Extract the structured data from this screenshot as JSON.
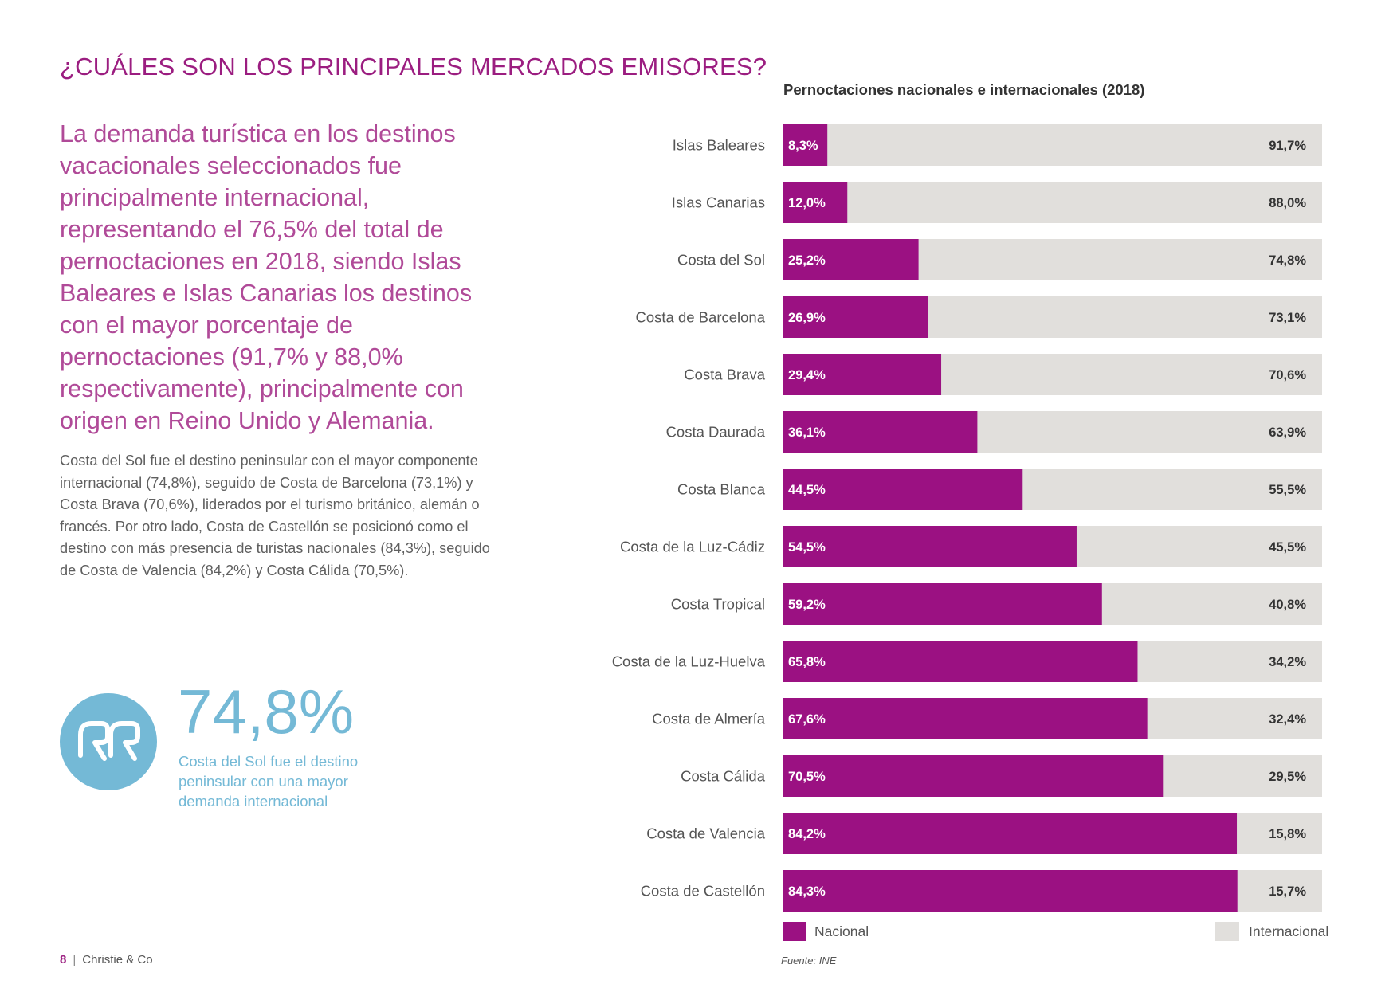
{
  "page": {
    "title": "¿CUÁLES SON LOS PRINCIPALES MERCADOS EMISORES?",
    "lead": "La demanda turística en los destinos vacacionales seleccionados fue principalmente internacional, representando el 76,5% del total de pernoctaciones en 2018, siendo Islas Baleares e Islas Canarias los destinos con el mayor porcentaje de pernoctaciones (91,7% y 88,0% respectivamente), principalmente con origen en Reino Unido y Alemania.",
    "body": "Costa del Sol fue el destino peninsular con el mayor componente internacional (74,8%), seguido de Costa de Barcelona (73,1%) y Costa Brava (70,6%), liderados por el turismo británico, alemán o francés. Por otro lado, Costa de Castellón se posicionó como el destino con más presencia de turistas nacionales (84,3%), seguido de Costa de Valencia (84,2%) y Costa Cálida (70,5%).",
    "stat_value": "74,8%",
    "stat_caption": "Costa del Sol fue el destino peninsular con una mayor demanda internacional",
    "quote_icon": "quote-icon"
  },
  "footer": {
    "page_number": "8",
    "brand": "Christie & Co",
    "source": "Fuente: INE"
  },
  "colors": {
    "nacional": "#9b1182",
    "internacional": "#e1dfdc",
    "accent_blue": "#74b9d6"
  },
  "chart_data": {
    "type": "bar",
    "orientation": "horizontal",
    "stacked": true,
    "title": "Pernoctaciones nacionales e internacionales (2018)",
    "categories": [
      "Islas Baleares",
      "Islas Canarias",
      "Costa del Sol",
      "Costa de Barcelona",
      "Costa Brava",
      "Costa Daurada",
      "Costa Blanca",
      "Costa de la Luz-Cádiz",
      "Costa Tropical",
      "Costa de la Luz-Huelva",
      "Costa de Almería",
      "Costa Cálida",
      "Costa de Valencia",
      "Costa de Castellón"
    ],
    "series": [
      {
        "name": "Nacional",
        "values": [
          8.3,
          12.0,
          25.2,
          26.9,
          29.4,
          36.1,
          44.5,
          54.5,
          59.2,
          65.8,
          67.6,
          70.5,
          84.2,
          84.3
        ],
        "labels": [
          "8,3%",
          "12,0%",
          "25,2%",
          "26,9%",
          "29,4%",
          "36,1%",
          "44,5%",
          "54,5%",
          "59,2%",
          "65,8%",
          "67,6%",
          "70,5%",
          "84,2%",
          "84,3%"
        ]
      },
      {
        "name": "Internacional",
        "values": [
          91.7,
          88.0,
          74.8,
          73.1,
          70.6,
          63.9,
          55.5,
          45.5,
          40.8,
          34.2,
          32.4,
          29.5,
          15.8,
          15.7
        ],
        "labels": [
          "91,7%",
          "88,0%",
          "74,8%",
          "73,1%",
          "70,6%",
          "63,9%",
          "55,5%",
          "45,5%",
          "40,8%",
          "34,2%",
          "32,4%",
          "29,5%",
          "15,8%",
          "15,7%"
        ]
      }
    ],
    "xlim": [
      0,
      100
    ],
    "grid": false,
    "legend": "bottom"
  }
}
